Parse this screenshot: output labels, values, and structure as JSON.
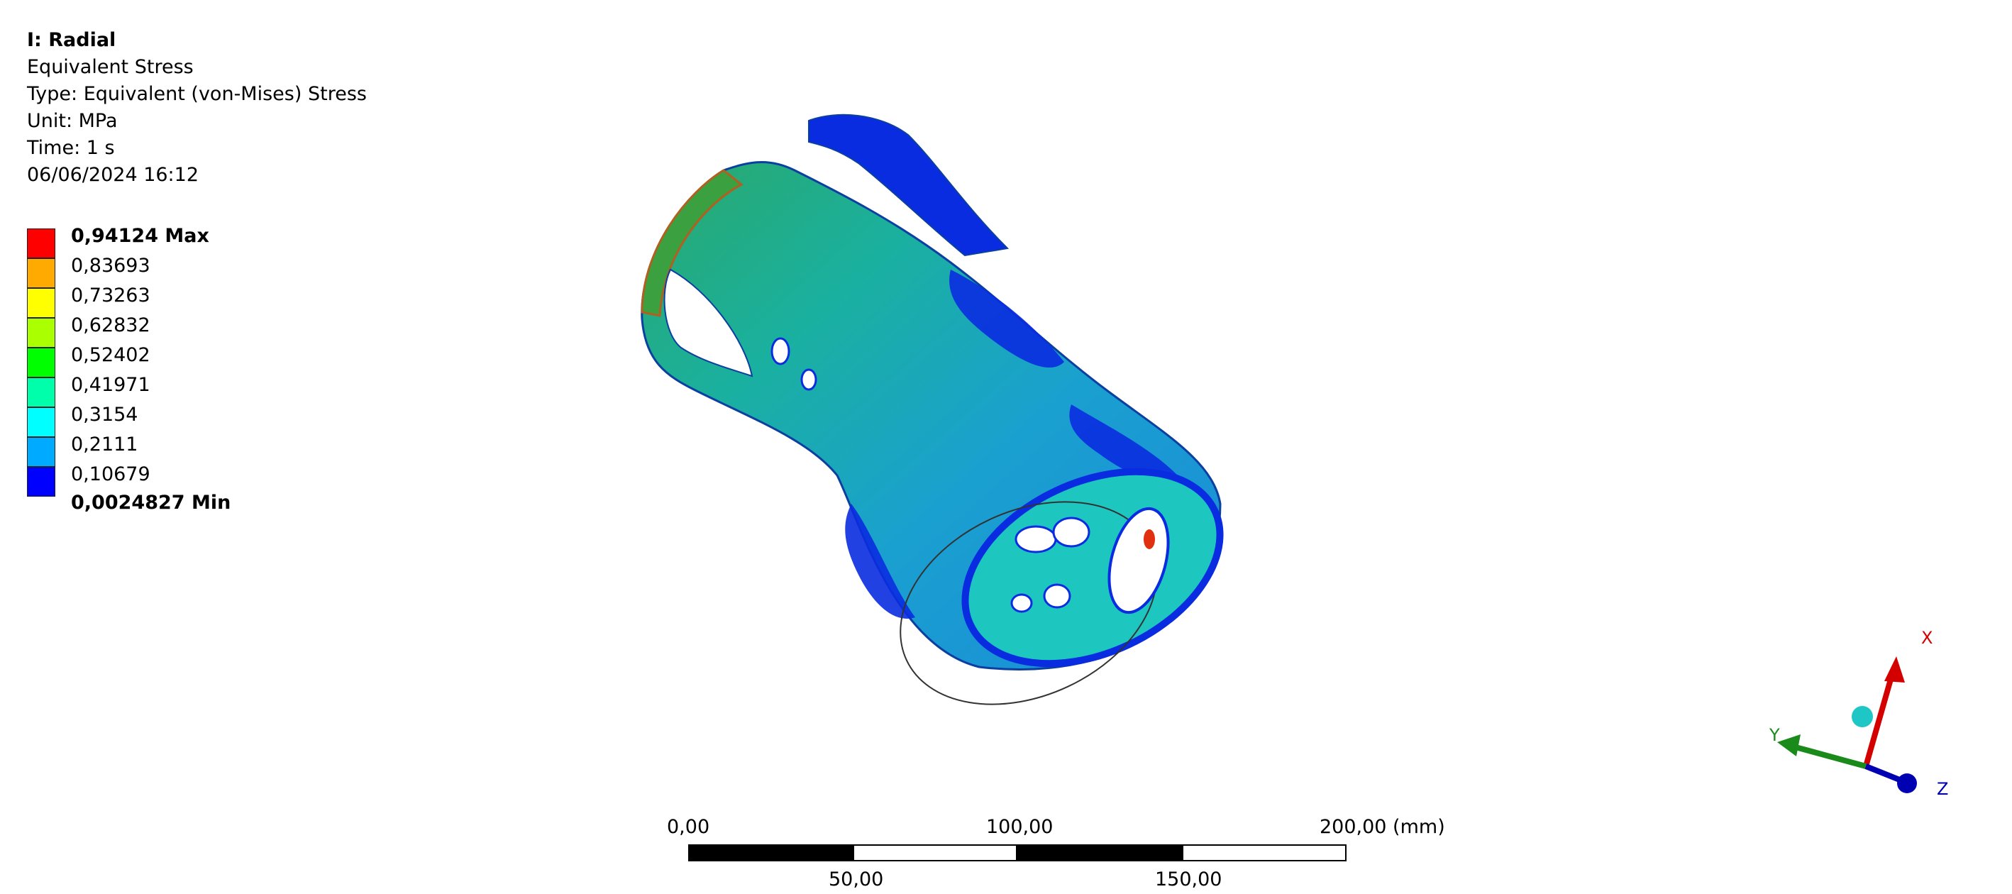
{
  "info": {
    "title": "I: Radial",
    "result": "Equivalent Stress",
    "type": "Type: Equivalent (von-Mises) Stress",
    "unit": "Unit: MPa",
    "time": "Time: 1 s",
    "timestamp": "06/06/2024 16:12"
  },
  "legend": {
    "max_label": "0,94124 Max",
    "min_label": "0,0024827 Min",
    "levels": [
      "0,83693",
      "0,73263",
      "0,62832",
      "0,52402",
      "0,41971",
      "0,3154",
      "0,2111",
      "0,10679"
    ],
    "colors": [
      "#ff0000",
      "#ffaa00",
      "#ffff00",
      "#aaff00",
      "#00ff00",
      "#00ffaa",
      "#00ffff",
      "#00aaff",
      "#0000ff"
    ]
  },
  "triad": {
    "x_label": "X",
    "y_label": "Y",
    "z_label": "Z",
    "x_color": "#d40000",
    "y_color": "#1a8a1a",
    "z_color": "#0000b3"
  },
  "scale": {
    "label_0": "0,00",
    "label_50": "50,00",
    "label_100": "100,00",
    "label_150": "150,00",
    "label_200": "200,00 (mm)"
  }
}
